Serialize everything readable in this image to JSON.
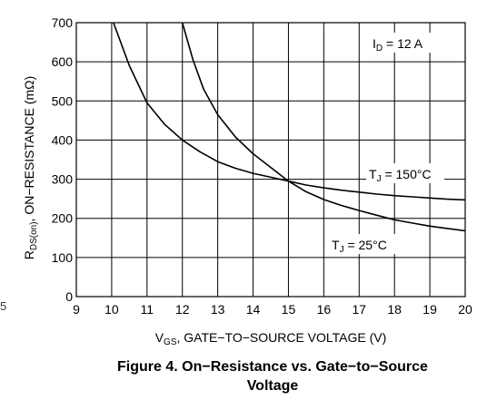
{
  "chart_data": {
    "type": "line",
    "title": "Figure 4. On−Resistance vs. Gate−to−Source",
    "title_line2": "Voltage",
    "xlabel_main": "V",
    "xlabel_sub": "GS",
    "xlabel_rest": ", GATE−TO−SOURCE VOLTAGE (V)",
    "ylabel_main": "R",
    "ylabel_sub": "DS(on)",
    "ylabel_rest": ", ON−RESISTANCE (mΩ)",
    "xlim": [
      9,
      20
    ],
    "ylim": [
      0,
      700
    ],
    "x_ticks": [
      "9",
      "10",
      "11",
      "12",
      "13",
      "14",
      "15",
      "16",
      "17",
      "18",
      "19",
      "20"
    ],
    "y_ticks": [
      "0",
      "100",
      "200",
      "300",
      "400",
      "500",
      "600",
      "700"
    ],
    "grid": true,
    "condition": {
      "main": "I",
      "sub": "D",
      "rest": " = 12 A"
    },
    "series": [
      {
        "label_main": "T",
        "label_sub": "J",
        "label_rest": " = 150°C",
        "x": [
          10.05,
          10.5,
          11,
          11.5,
          12,
          12.5,
          13,
          13.5,
          14,
          14.5,
          15,
          15.5,
          16,
          16.5,
          17,
          17.5,
          18,
          18.5,
          19,
          19.5,
          20
        ],
        "y": [
          700,
          590,
          495,
          440,
          400,
          370,
          345,
          328,
          315,
          305,
          295,
          285,
          278,
          272,
          267,
          262,
          258,
          255,
          252,
          249,
          247
        ]
      },
      {
        "label_main": "T",
        "label_sub": "J",
        "label_rest": " = 25°C",
        "x": [
          12.0,
          12.3,
          12.6,
          13,
          13.5,
          14,
          14.5,
          15,
          15.5,
          16,
          16.5,
          17,
          17.5,
          18,
          18.5,
          19,
          19.5,
          20
        ],
        "y": [
          700,
          605,
          530,
          465,
          408,
          365,
          330,
          295,
          268,
          248,
          233,
          220,
          208,
          196,
          188,
          180,
          174,
          168
        ]
      }
    ]
  },
  "page_marks": {
    "edge_mark": "5"
  }
}
